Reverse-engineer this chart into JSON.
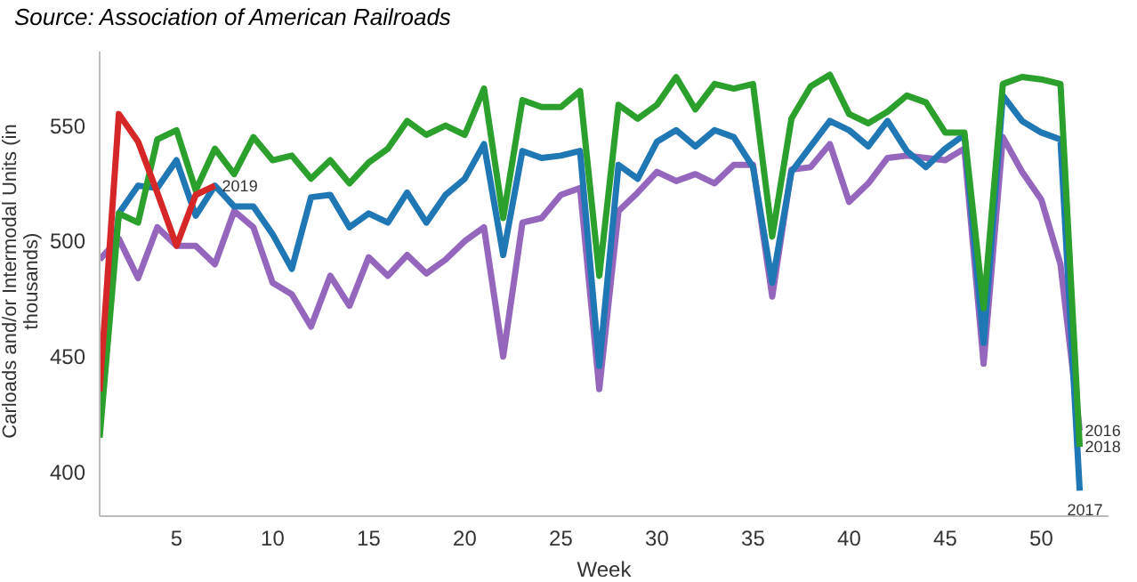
{
  "chart_data": {
    "type": "line",
    "xlabel": "Week",
    "ylabel": "Carloads and/or Intermodal Units (in thousands)",
    "annotations": [
      "Source: Association of American Railroads"
    ],
    "x": [
      1,
      2,
      3,
      4,
      5,
      6,
      7,
      8,
      9,
      10,
      11,
      12,
      13,
      14,
      15,
      16,
      17,
      18,
      19,
      20,
      21,
      22,
      23,
      24,
      25,
      26,
      27,
      28,
      29,
      30,
      31,
      32,
      33,
      34,
      35,
      36,
      37,
      38,
      39,
      40,
      41,
      42,
      43,
      44,
      45,
      46,
      47,
      48,
      49,
      50,
      51,
      52
    ],
    "series": [
      {
        "name": "2016",
        "color": "#9467bd",
        "values": [
          492,
          501,
          484,
          506,
          498,
          498,
          490,
          513,
          506,
          482,
          477,
          463,
          485,
          472,
          493,
          485,
          494,
          486,
          492,
          500,
          506,
          450,
          508,
          510,
          520,
          523,
          436,
          513,
          521,
          530,
          526,
          529,
          525,
          533,
          533,
          476,
          531,
          532,
          542,
          517,
          525,
          536,
          537,
          536,
          535,
          540,
          447,
          545,
          530,
          518,
          490,
          418
        ]
      },
      {
        "name": "2017",
        "color": "#1f77b4",
        "values": [
          440,
          512,
          524,
          523,
          535,
          511,
          524,
          515,
          515,
          503,
          488,
          519,
          520,
          506,
          512,
          508,
          521,
          508,
          520,
          527,
          542,
          494,
          539,
          536,
          537,
          539,
          446,
          533,
          527,
          543,
          548,
          541,
          548,
          545,
          532,
          482,
          530,
          541,
          552,
          548,
          541,
          552,
          539,
          532,
          540,
          546,
          456,
          563,
          552,
          547,
          544,
          392
        ]
      },
      {
        "name": "2018",
        "color": "#2ca02c",
        "values": [
          415,
          512,
          508,
          544,
          548,
          522,
          540,
          529,
          545,
          535,
          537,
          527,
          535,
          525,
          534,
          540,
          552,
          546,
          550,
          546,
          566,
          510,
          561,
          558,
          558,
          565,
          485,
          559,
          553,
          559,
          571,
          557,
          568,
          566,
          568,
          502,
          553,
          567,
          572,
          555,
          551,
          556,
          563,
          560,
          547,
          547,
          471,
          568,
          571,
          570,
          568,
          411
        ]
      },
      {
        "name": "2019",
        "color": "#d62728",
        "values": [
          435,
          555,
          543,
          521,
          498,
          520,
          524,
          null,
          null,
          null,
          null,
          null,
          null,
          null,
          null,
          null,
          null,
          null,
          null,
          null,
          null,
          null,
          null,
          null,
          null,
          null,
          null,
          null,
          null,
          null,
          null,
          null,
          null,
          null,
          null,
          null,
          null,
          null,
          null,
          null,
          null,
          null,
          null,
          null,
          null,
          null,
          null,
          null,
          null,
          null,
          null,
          null
        ]
      }
    ],
    "xlim": [
      1,
      53.5
    ],
    "xticks": [
      5,
      10,
      15,
      20,
      25,
      30,
      35,
      40,
      45,
      50
    ],
    "ylim": [
      381,
      582
    ],
    "yticks": [
      400,
      450,
      500,
      550
    ],
    "grid": false,
    "legend": false,
    "marker": "none",
    "line_style": "solid"
  }
}
